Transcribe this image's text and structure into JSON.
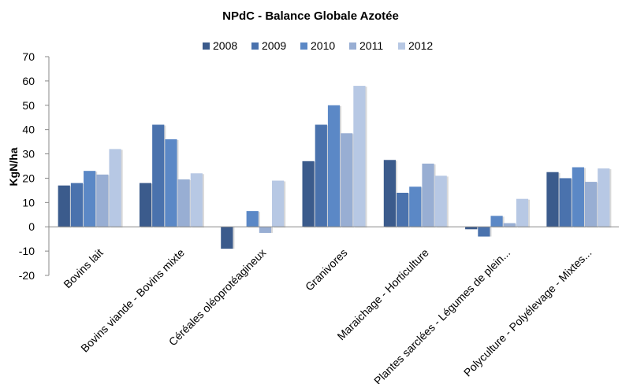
{
  "chart_data": {
    "type": "bar",
    "title": "NPdC - Balance Globale Azotée",
    "xlabel": "",
    "ylabel": "KgN/ha",
    "ylim": [
      -20,
      70
    ],
    "yticks": [
      "-20",
      "-10",
      "0",
      "10",
      "20",
      "30",
      "40",
      "50",
      "60",
      "70"
    ],
    "legend_position": "top",
    "grid": false,
    "categories": [
      "Bovins lait",
      "Bovins viande - Bovins mixte",
      "Céréales oléoprotéagineux",
      "Granivores",
      "Maraichage - Horticulture",
      "Plantes sarclées - Légumes de plein...",
      "Polyculture - Polyélevage - Mixtes..."
    ],
    "series": [
      {
        "name": "2008",
        "color": "#3b5b8c",
        "values": [
          17,
          18,
          -9,
          27,
          27.5,
          -1,
          22.5
        ]
      },
      {
        "name": "2009",
        "color": "#4a72ad",
        "values": [
          18,
          42,
          0,
          42,
          14,
          -4,
          20
        ]
      },
      {
        "name": "2010",
        "color": "#5b88c6",
        "values": [
          23,
          36,
          6.5,
          50,
          16.5,
          4.5,
          24.5
        ]
      },
      {
        "name": "2011",
        "color": "#98aed3",
        "values": [
          21.5,
          19.5,
          -2.5,
          38.5,
          26,
          1.5,
          18.5
        ]
      },
      {
        "name": "2012",
        "color": "#b7c8e4",
        "values": [
          32,
          22,
          19,
          58,
          21,
          11.5,
          24
        ]
      }
    ]
  }
}
